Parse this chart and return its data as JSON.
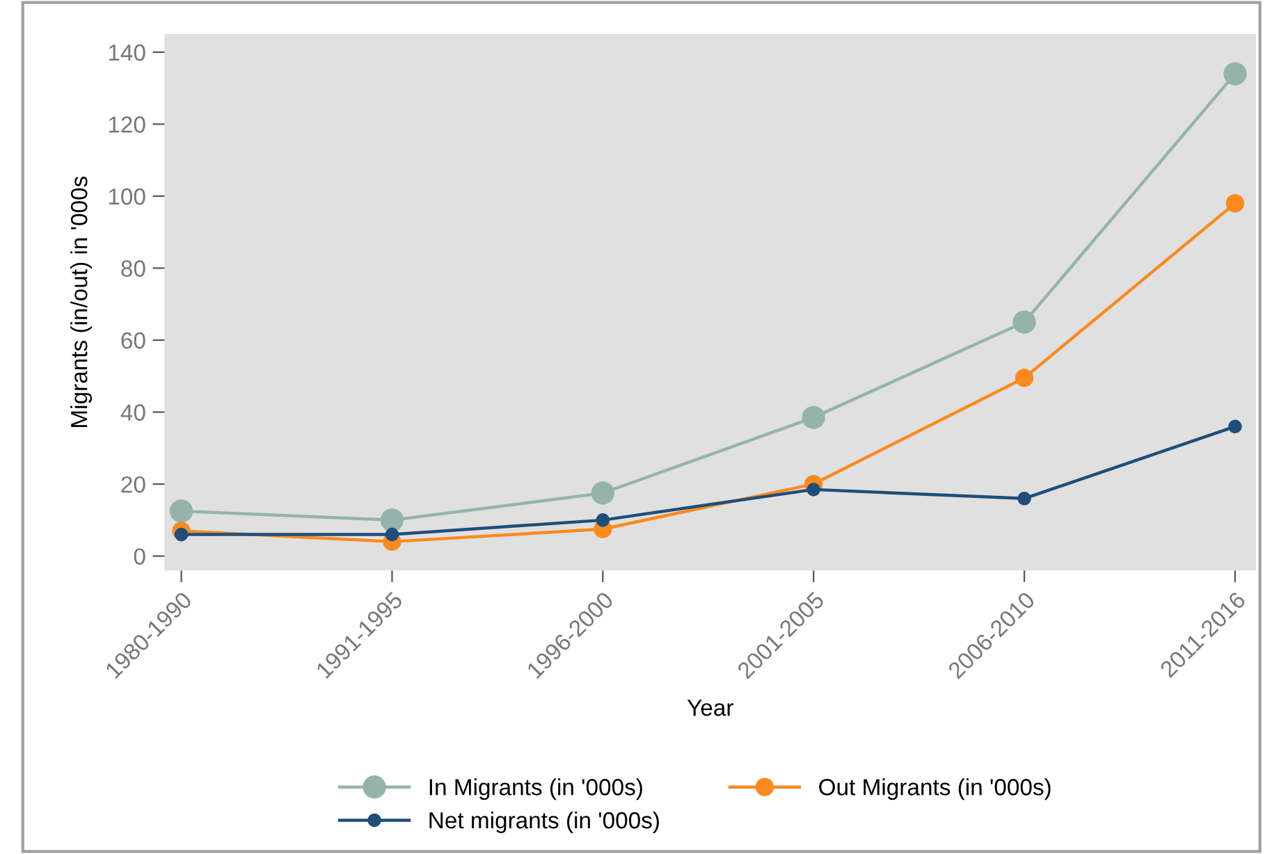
{
  "chart_data": {
    "type": "line",
    "xlabel": "Year",
    "ylabel": "Migrants (in/out) in '000s",
    "categories": [
      "1980-1990",
      "1991-1995",
      "1996-2000",
      "2001-2005",
      "2006-2010",
      "2011-2016"
    ],
    "series": [
      {
        "name": "In Migrants (in '000s)",
        "color": "#94b4ab",
        "values": [
          12.5,
          10,
          17.5,
          38.5,
          65,
          134
        ]
      },
      {
        "name": "Out Migrants (in '000s)",
        "color": "#fb8a1e",
        "values": [
          7,
          4,
          7.5,
          20,
          49.5,
          98
        ]
      },
      {
        "name": "Net migrants (in '000s)",
        "color": "#1f4e79",
        "values": [
          6,
          6,
          10,
          18.5,
          16,
          36
        ]
      }
    ],
    "ylim": [
      -4,
      145
    ],
    "yticks": [
      0,
      20,
      40,
      60,
      80,
      100,
      120,
      140
    ],
    "grid": false,
    "legend": "bottom",
    "marker": "circle",
    "line_style": "solid"
  }
}
